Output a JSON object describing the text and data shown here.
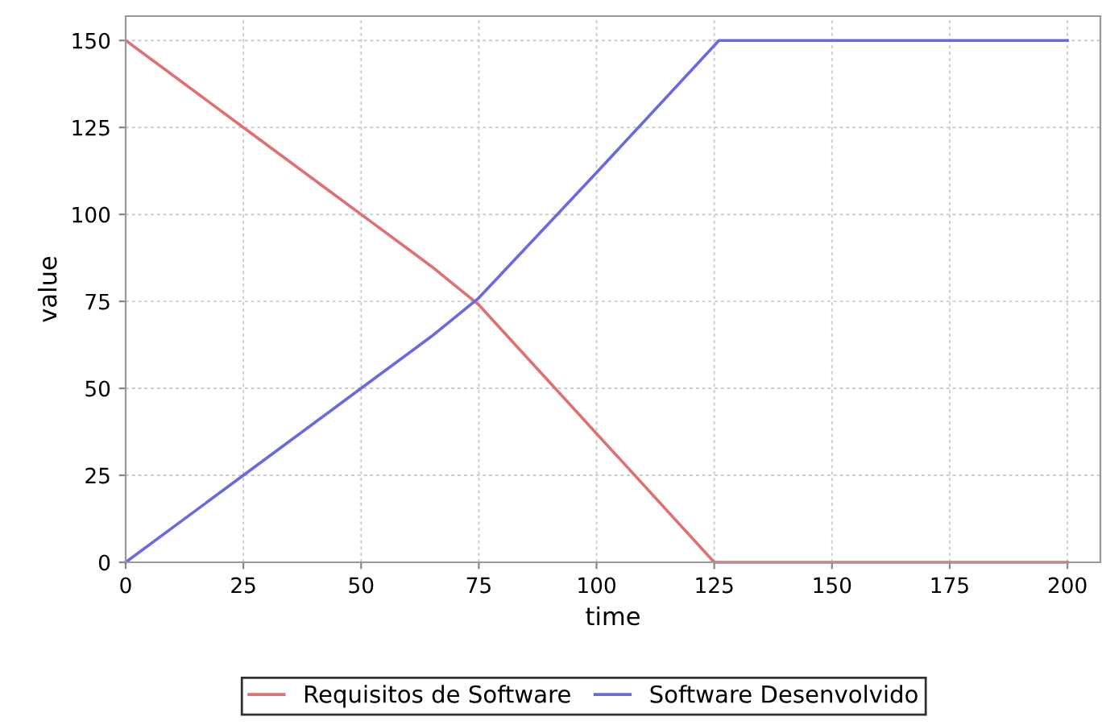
{
  "chart_data": {
    "type": "line",
    "xlabel": "time",
    "ylabel": "value",
    "xlim": [
      0,
      207
    ],
    "ylim": [
      0,
      157
    ],
    "xticks": [
      0,
      25,
      50,
      75,
      100,
      125,
      150,
      175,
      200
    ],
    "yticks": [
      0,
      25,
      50,
      75,
      100,
      125,
      150
    ],
    "grid": true,
    "legend": "bottom",
    "marker": "none",
    "line_style": "solid",
    "series": [
      {
        "name": "Requisitos de Software",
        "color": "#e07070",
        "x": [
          0,
          25,
          50,
          65,
          75,
          100,
          125,
          200
        ],
        "values": [
          150,
          125,
          100,
          85,
          74,
          37,
          0,
          0
        ]
      },
      {
        "name": "Software Desenvolvido",
        "color": "#6a6ae0",
        "x": [
          0,
          25,
          50,
          65,
          75,
          100,
          126,
          200
        ],
        "values": [
          0,
          25,
          50,
          65,
          76,
          112,
          150,
          150
        ]
      }
    ]
  }
}
